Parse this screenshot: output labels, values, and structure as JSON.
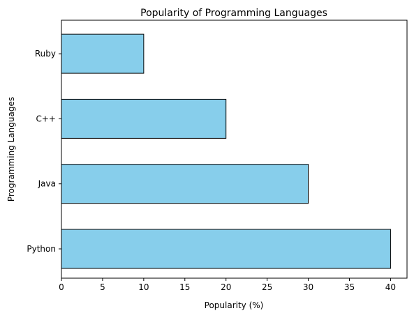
{
  "chart_data": {
    "type": "bar",
    "orientation": "horizontal",
    "title": "Popularity of Programming Languages",
    "xlabel": "Popularity (%)",
    "ylabel": "Programming Languages",
    "categories": [
      "Python",
      "Java",
      "C++",
      "Ruby"
    ],
    "values": [
      40,
      30,
      20,
      10
    ],
    "xlim": [
      0,
      42
    ],
    "xticks": [
      0,
      5,
      10,
      15,
      20,
      25,
      30,
      35,
      40
    ],
    "bar_color": "#87ceeb",
    "edge_color": "#000000",
    "grid": false,
    "legend": false
  }
}
